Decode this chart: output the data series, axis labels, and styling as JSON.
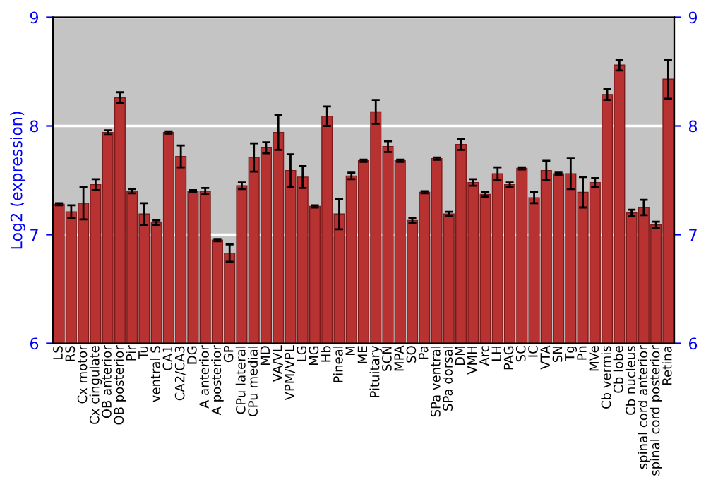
{
  "chart_data": {
    "type": "bar",
    "ylabel": "Log2 (expression)",
    "categories": [
      "LS",
      "RS",
      "Cx motor",
      "Cx cingulate",
      "OB anterior",
      "OB posterior",
      "Pir",
      "Tu",
      "ventral S",
      "CA1",
      "CA2/CA3",
      "DG",
      "A anterior",
      "A posterior",
      "GP",
      "CPu lateral",
      "CPu medial",
      "MD",
      "VA/VL",
      "VPM/VPL",
      "LG",
      "MG",
      "Hb",
      "Pineal",
      "M",
      "ME",
      "Pituitary",
      "SCN",
      "MPA",
      "SO",
      "Pa",
      "SPa ventral",
      "SPa dorsal",
      "DM",
      "VMH",
      "Arc",
      "LH",
      "PAG",
      "SC",
      "IC",
      "VTA",
      "SN",
      "Tg",
      "Pn",
      "MVe",
      "Cb vermis",
      "Cb lobe",
      "Cb nucleus",
      "spinal cord anterior",
      "spinal cord posterior",
      "Retina"
    ],
    "series": [
      {
        "color": "#b83232",
        "values": [
          7.28,
          7.21,
          7.29,
          7.46,
          7.94,
          8.26,
          7.4,
          7.19,
          7.11,
          7.94,
          7.72,
          7.4,
          7.4,
          6.95,
          6.83,
          7.45,
          7.71,
          7.8,
          7.94,
          7.59,
          7.53,
          7.26,
          8.09,
          7.19,
          7.54,
          7.68,
          8.13,
          7.81,
          7.68,
          7.13,
          7.39,
          7.7,
          7.19,
          7.83,
          7.48,
          7.37,
          7.56,
          7.46,
          7.61,
          7.34,
          7.59,
          7.56,
          7.56,
          7.39,
          7.48,
          8.29,
          8.56,
          7.2,
          7.25,
          7.09,
          8.43
        ],
        "errors": [
          0.01,
          0.06,
          0.15,
          0.05,
          0.02,
          0.05,
          0.02,
          0.1,
          0.02,
          0.01,
          0.1,
          0.01,
          0.03,
          0.01,
          0.08,
          0.03,
          0.13,
          0.05,
          0.16,
          0.15,
          0.1,
          0.01,
          0.09,
          0.14,
          0.03,
          0.01,
          0.11,
          0.05,
          0.01,
          0.02,
          0.01,
          0.01,
          0.02,
          0.05,
          0.03,
          0.02,
          0.06,
          0.02,
          0.01,
          0.05,
          0.09,
          0.01,
          0.14,
          0.14,
          0.04,
          0.05,
          0.05,
          0.03,
          0.07,
          0.03,
          0.18
        ]
      }
    ],
    "ylim": [
      6,
      9
    ],
    "yticks": [
      6,
      7,
      8,
      9
    ],
    "y2lim": [
      6,
      9
    ],
    "y2ticks": [
      6,
      7,
      8,
      9
    ],
    "grid": "y",
    "legend": false
  }
}
